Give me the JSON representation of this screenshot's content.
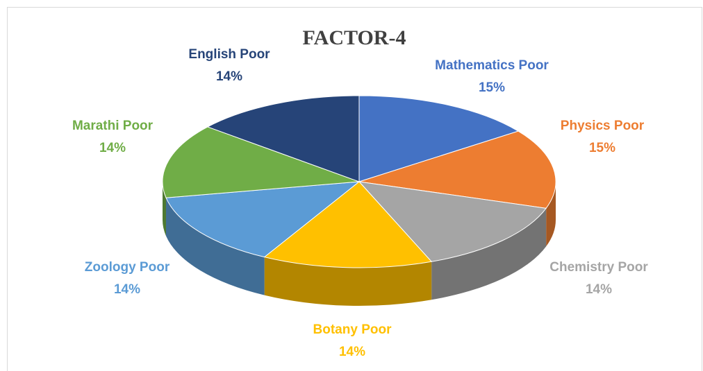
{
  "chart_data": {
    "type": "pie",
    "title": "FACTOR-4",
    "categories": [
      "Mathematics Poor",
      "Physics Poor",
      "Chemistry Poor",
      "Botany Poor",
      "Zoology Poor",
      "Marathi Poor",
      "English Poor"
    ],
    "values": [
      15,
      15,
      14,
      14,
      14,
      14,
      14
    ],
    "value_labels": [
      "15%",
      "15%",
      "14%",
      "14%",
      "14%",
      "14%",
      "14%"
    ],
    "colors": [
      "#4472c4",
      "#ed7d31",
      "#a5a5a5",
      "#ffc000",
      "#5b9bd5",
      "#70ad47",
      "#264478"
    ]
  }
}
